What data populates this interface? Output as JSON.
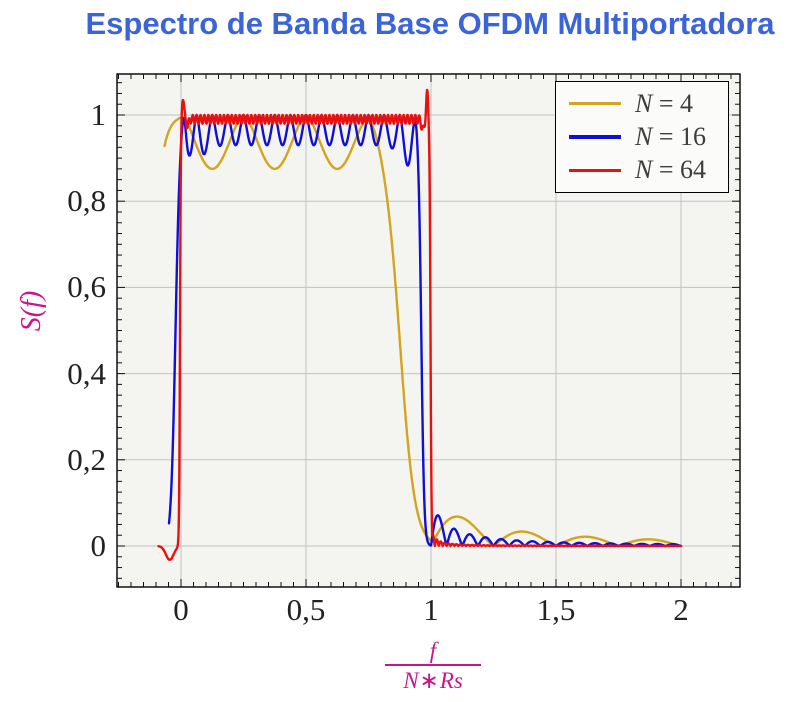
{
  "colors": {
    "title": "#3b64d8",
    "axis_label_magenta": "#c7158a",
    "grid": "#c2c2c2",
    "plot_bg": "#f4f4f1",
    "frame": "#000000",
    "tick": "#111111",
    "tick_label": "#222222",
    "legend_text": "#3d3d3d",
    "legend_bg": "#fbfbf9"
  },
  "chart_data": {
    "type": "line",
    "title": "Espectro de Banda Base OFDM Multiportadora",
    "ylabel": "S(f)",
    "xlabel": {
      "num": "f",
      "den_n": "N",
      "den_op": "∗",
      "den_rs": "Rs"
    },
    "xlim": [
      -0.256,
      2.236
    ],
    "ylim": [
      -0.095,
      1.095
    ],
    "x_ticks": [
      {
        "v": 0,
        "label": "0"
      },
      {
        "v": 0.5,
        "label": "0,5"
      },
      {
        "v": 1,
        "label": "1"
      },
      {
        "v": 1.5,
        "label": "1,5"
      },
      {
        "v": 2,
        "label": "2"
      }
    ],
    "y_ticks": [
      {
        "v": 0,
        "label": "0"
      },
      {
        "v": 0.2,
        "label": "0,2"
      },
      {
        "v": 0.4,
        "label": "0,4"
      },
      {
        "v": 0.6,
        "label": "0,6"
      },
      {
        "v": 0.8,
        "label": "0,8"
      },
      {
        "v": 1,
        "label": "1"
      }
    ],
    "minor_tick_step_x": 0.05,
    "minor_tick_step_y": 0.025,
    "grid": "major",
    "legend_position": "top-right",
    "series": [
      {
        "label": "N = 4",
        "label_symbol": "N",
        "label_rest": " = 4",
        "N": 4,
        "color": "#d3a51e",
        "x_start": -0.066,
        "x_end": 2.0,
        "sample_step": 0.0015,
        "model": {
          "rise_center": -0.13,
          "rise_width": 0.05,
          "fall_center": 0.88,
          "fall_width": 0.055,
          "band_end": 1.0,
          "ripple_freq": 4,
          "ripple_depth": 0.125,
          "ripple_pow": 1.6,
          "ripple_extra": [],
          "overshoots": [],
          "sidelobe_amp": 0.115,
          "sidelobe_period": 0.25,
          "sidelobe_decay": 0.22
        },
        "key_points": [
          [
            -0.066,
            0.93
          ],
          [
            0,
            1
          ],
          [
            0.125,
            0.88
          ],
          [
            0.25,
            1
          ],
          [
            0.375,
            0.875
          ],
          [
            0.5,
            1
          ],
          [
            0.625,
            0.87
          ],
          [
            0.75,
            0.99
          ],
          [
            0.88,
            0.5
          ],
          [
            1.02,
            0.01
          ],
          [
            1.125,
            0.07
          ],
          [
            1.375,
            0.033
          ],
          [
            1.625,
            0.02
          ],
          [
            1.875,
            0.013
          ],
          [
            2,
            0.01
          ]
        ]
      },
      {
        "label": "N = 16",
        "label_symbol": "N",
        "label_rest": " = 16",
        "N": 16,
        "color": "#0f0fd9",
        "x_start": -0.048,
        "x_end": 2.0,
        "sample_step": 0.0012,
        "model": {
          "rise_center": -0.022,
          "rise_width": 0.018,
          "fall_center": 0.962,
          "fall_width": 0.011,
          "band_end": 1.0,
          "ripple_freq": 16,
          "ripple_depth": 0.07,
          "ripple_pow": 1.6,
          "ripple_extra": [
            {
              "x": 0.92,
              "a": 0.05,
              "w": 0.055
            },
            {
              "x": 0.05,
              "a": 0.035,
              "w": 0.06
            }
          ],
          "overshoots": [
            {
              "x": 0.012,
              "a": 0.035,
              "w": 0.01
            }
          ],
          "sidelobe_amp": 0.105,
          "sidelobe_period": 0.0625,
          "sidelobe_decay": 0.08
        },
        "key_points": [
          [
            -0.048,
            0.07
          ],
          [
            0.012,
            1.02
          ],
          [
            0.031,
            0.9
          ],
          [
            0.5,
            0.995
          ],
          [
            0.906,
            0.85
          ],
          [
            0.938,
            1.0
          ],
          [
            0.962,
            0.5
          ],
          [
            0.99,
            0.02
          ],
          [
            1.031,
            0.08
          ],
          [
            1.094,
            0.043
          ],
          [
            1.156,
            0.03
          ],
          [
            1.5,
            0.013
          ],
          [
            2,
            0.007
          ]
        ]
      },
      {
        "label": "N = 64",
        "label_symbol": "N",
        "label_rest": " = 64",
        "N": 64,
        "color": "#ea1010",
        "x_start": -0.09,
        "x_end": 2.0,
        "sample_step": 0.0008,
        "model": {
          "rise_center": -0.004,
          "rise_width": 0.0035,
          "fall_center": 0.998,
          "fall_width": 0.004,
          "band_end": 1.0,
          "ripple_freq": 64,
          "ripple_depth": 0.02,
          "ripple_pow": 2,
          "ripple_extra": [],
          "overshoots": [
            {
              "x": -0.045,
              "a": -0.032,
              "w": 0.022
            },
            {
              "x": 0.008,
              "a": 0.045,
              "w": 0.006
            },
            {
              "x": 0.025,
              "a": -0.015,
              "w": 0.008
            },
            {
              "x": 0.968,
              "a": -0.025,
              "w": 0.008
            },
            {
              "x": 0.985,
              "a": 0.06,
              "w": 0.006
            }
          ],
          "sidelobe_amp": 0.04,
          "sidelobe_period": 0.015625,
          "sidelobe_decay": 0.02
        },
        "key_points": [
          [
            -0.09,
            0
          ],
          [
            -0.045,
            -0.03
          ],
          [
            0,
            0.9
          ],
          [
            0.008,
            1.04
          ],
          [
            0.5,
            1.0
          ],
          [
            0.985,
            1.05
          ],
          [
            1.0,
            0.27
          ],
          [
            1.01,
            0.02
          ],
          [
            1.5,
            0
          ],
          [
            2,
            0
          ]
        ]
      }
    ]
  }
}
